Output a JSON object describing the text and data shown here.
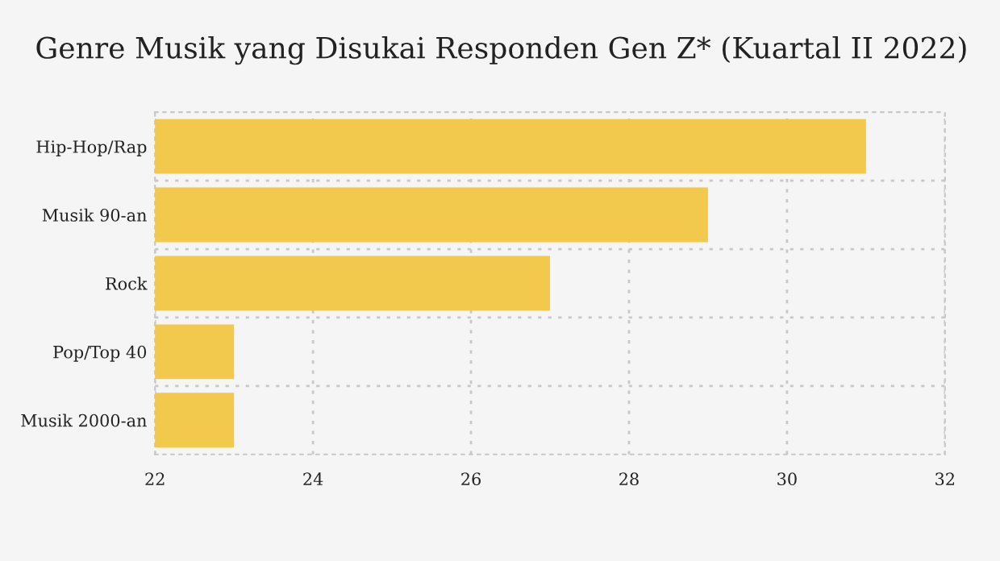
{
  "chart_data": {
    "type": "bar",
    "orientation": "horizontal",
    "title": "Genre Musik yang Disukai Responden Gen Z* (Kuartal II 2022)",
    "categories": [
      "Hip-Hop/Rap",
      "Musik 90-an",
      "Rock",
      "Pop/Top 40",
      "Musik 2000-an"
    ],
    "values": [
      31,
      29,
      27,
      23,
      23
    ],
    "color": "#f2c94c",
    "xlim": [
      22,
      32
    ],
    "xticks": [
      22,
      24,
      26,
      28,
      30,
      32
    ],
    "grid": true
  }
}
